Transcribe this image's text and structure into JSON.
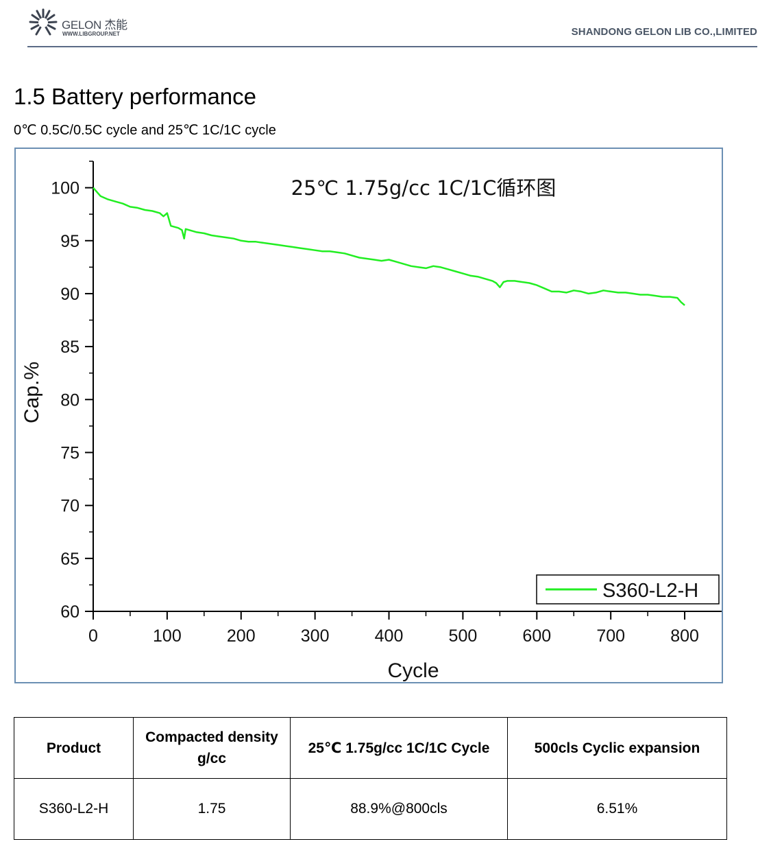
{
  "header": {
    "logo_name": "GELON 杰能",
    "logo_url": "WWW.LIBGROUP.NET",
    "company": "SHANDONG GELON LIB CO.,LIMITED"
  },
  "section": {
    "title": "1.5 Battery performance",
    "subtitle": "0℃ 0.5C/0.5C cycle and 25℃ 1C/1C cycle"
  },
  "chart_data": {
    "type": "line",
    "title": "25℃ 1.75g/cc  1C/1C循环图",
    "xlabel": "Cycle",
    "ylabel": "Cap.%",
    "xlim": [
      0,
      850
    ],
    "ylim": [
      60,
      102.5
    ],
    "x_ticks": [
      0,
      100,
      200,
      300,
      400,
      500,
      600,
      700,
      800
    ],
    "y_ticks": [
      60,
      65,
      70,
      75,
      80,
      85,
      90,
      95,
      100
    ],
    "grid": false,
    "legend_position": "bottom-right",
    "series": [
      {
        "name": "S360-L2-H",
        "color": "#22ee22",
        "x": [
          0,
          5,
          10,
          20,
          30,
          40,
          50,
          60,
          70,
          80,
          90,
          95,
          100,
          105,
          110,
          115,
          120,
          123,
          125,
          130,
          140,
          150,
          160,
          170,
          180,
          190,
          200,
          210,
          220,
          230,
          240,
          250,
          260,
          270,
          280,
          290,
          300,
          310,
          320,
          330,
          340,
          350,
          360,
          370,
          380,
          390,
          400,
          410,
          420,
          430,
          440,
          450,
          460,
          470,
          480,
          490,
          500,
          510,
          520,
          530,
          540,
          545,
          550,
          555,
          560,
          570,
          580,
          590,
          600,
          610,
          620,
          630,
          640,
          650,
          660,
          670,
          680,
          690,
          700,
          710,
          720,
          730,
          740,
          750,
          760,
          770,
          780,
          790,
          795,
          800
        ],
        "y": [
          100.0,
          99.6,
          99.2,
          98.9,
          98.7,
          98.5,
          98.2,
          98.1,
          97.9,
          97.8,
          97.6,
          97.3,
          97.6,
          96.4,
          96.3,
          96.2,
          96.0,
          95.2,
          96.1,
          96.0,
          95.8,
          95.7,
          95.5,
          95.4,
          95.3,
          95.2,
          95.0,
          94.9,
          94.9,
          94.8,
          94.7,
          94.6,
          94.5,
          94.4,
          94.3,
          94.2,
          94.1,
          94.0,
          94.0,
          93.9,
          93.8,
          93.6,
          93.4,
          93.3,
          93.2,
          93.1,
          93.2,
          93.0,
          92.8,
          92.6,
          92.5,
          92.4,
          92.6,
          92.5,
          92.3,
          92.1,
          91.9,
          91.7,
          91.6,
          91.4,
          91.2,
          91.0,
          90.6,
          91.1,
          91.2,
          91.2,
          91.1,
          91.0,
          90.8,
          90.5,
          90.2,
          90.2,
          90.1,
          90.3,
          90.2,
          90.0,
          90.1,
          90.3,
          90.2,
          90.1,
          90.1,
          90.0,
          89.9,
          89.9,
          89.8,
          89.7,
          89.7,
          89.6,
          89.2,
          88.9
        ]
      }
    ]
  },
  "table": {
    "headers": [
      "Product",
      "Compacted density g/cc",
      "25℃  1.75g/cc 1C/1C Cycle",
      "500cls Cyclic expansion"
    ],
    "rows": [
      [
        "S360-L2-H",
        "1.75",
        "88.9%@800cls",
        "6.51%"
      ]
    ]
  }
}
